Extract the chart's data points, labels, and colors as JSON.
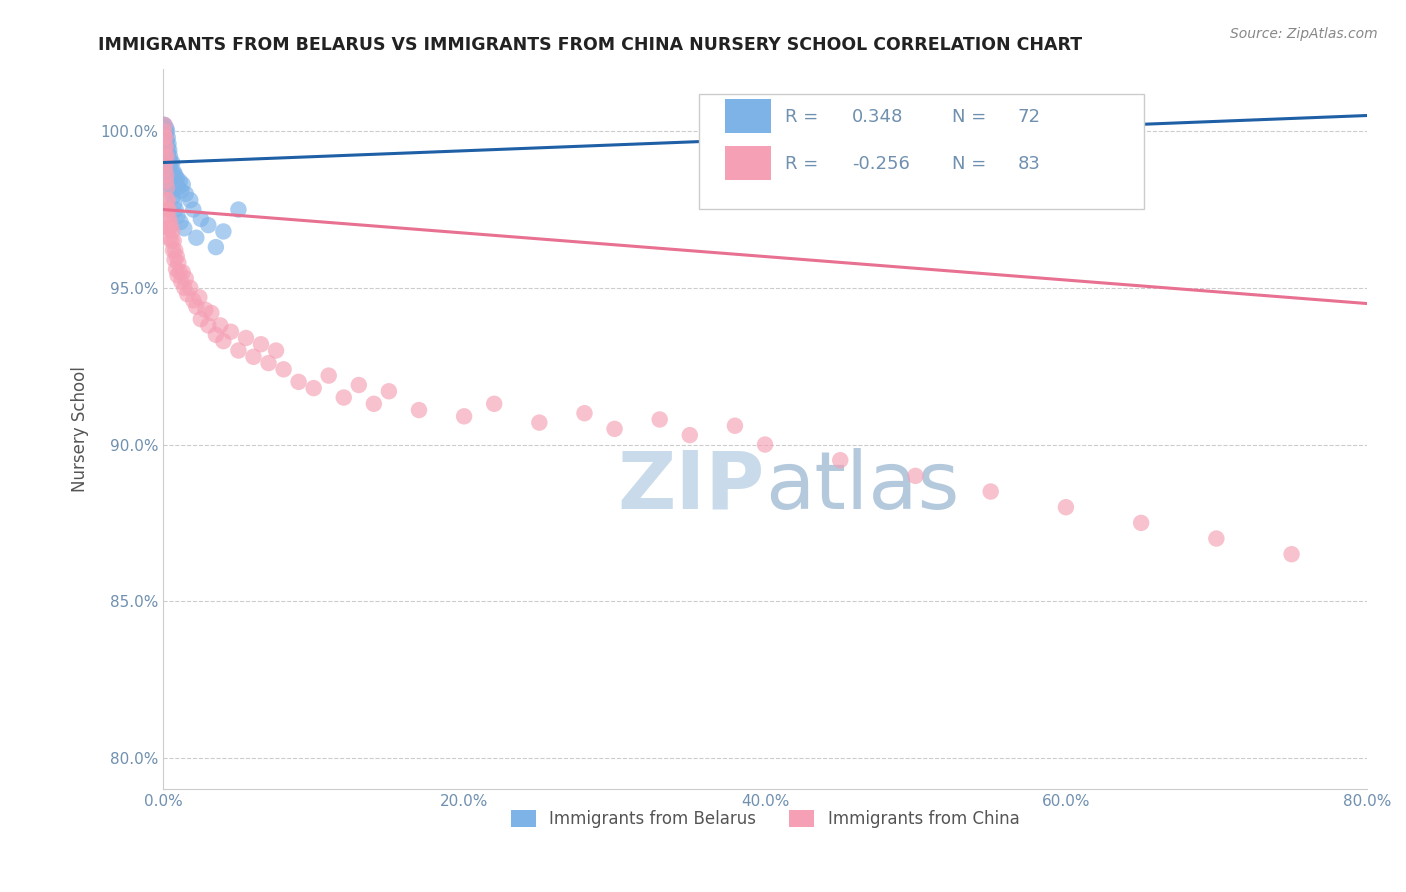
{
  "title": "IMMIGRANTS FROM BELARUS VS IMMIGRANTS FROM CHINA NURSERY SCHOOL CORRELATION CHART",
  "source": "Source: ZipAtlas.com",
  "ylabel": "Nursery School",
  "xlabel_ticks": [
    "0.0%",
    "20.0%",
    "40.0%",
    "60.0%",
    "80.0%"
  ],
  "xlabel_vals": [
    0.0,
    20.0,
    40.0,
    60.0,
    80.0
  ],
  "ylabel_ticks": [
    "80.0%",
    "85.0%",
    "90.0%",
    "95.0%",
    "100.0%"
  ],
  "ylabel_vals": [
    80.0,
    85.0,
    90.0,
    95.0,
    100.0
  ],
  "xlim": [
    0.0,
    80.0
  ],
  "ylim": [
    79.0,
    102.0
  ],
  "legend_bottom": [
    "Immigrants from Belarus",
    "Immigrants from China"
  ],
  "blue_color": "#7EB3E8",
  "pink_color": "#F5A0B5",
  "blue_line_color": "#1F5FA6",
  "pink_line_color": "#E87090",
  "axis_label_color": "#555555",
  "tick_color": "#7090B0",
  "grid_color": "#CCCCCC",
  "watermark_color": "#C8D8E8",
  "belarus_x": [
    0.05,
    0.05,
    0.07,
    0.08,
    0.1,
    0.1,
    0.12,
    0.15,
    0.15,
    0.18,
    0.2,
    0.2,
    0.22,
    0.25,
    0.25,
    0.28,
    0.3,
    0.3,
    0.32,
    0.35,
    0.35,
    0.38,
    0.4,
    0.4,
    0.42,
    0.45,
    0.5,
    0.5,
    0.55,
    0.6,
    0.6,
    0.65,
    0.7,
    0.75,
    0.8,
    0.85,
    0.9,
    1.0,
    1.1,
    1.2,
    1.3,
    1.5,
    1.8,
    2.0,
    2.5,
    3.0,
    4.0,
    5.0,
    0.06,
    0.09,
    0.13,
    0.17,
    0.21,
    0.26,
    0.33,
    0.43,
    0.53,
    0.63,
    0.73,
    0.83,
    0.95,
    1.15,
    1.4,
    2.2,
    3.5,
    0.05,
    0.06,
    0.08,
    0.11,
    0.14,
    0.19
  ],
  "belarus_y": [
    99.8,
    100.2,
    100.0,
    99.5,
    100.0,
    99.3,
    99.8,
    100.0,
    99.6,
    99.9,
    100.1,
    99.4,
    99.7,
    100.0,
    99.2,
    99.5,
    99.8,
    99.0,
    99.3,
    99.6,
    98.8,
    99.1,
    99.4,
    98.6,
    98.9,
    99.2,
    99.0,
    98.4,
    98.7,
    99.0,
    98.2,
    98.5,
    98.7,
    98.4,
    98.6,
    98.3,
    98.5,
    98.2,
    98.4,
    98.1,
    98.3,
    98.0,
    97.8,
    97.5,
    97.2,
    97.0,
    96.8,
    97.5,
    99.5,
    99.9,
    99.7,
    99.3,
    99.1,
    98.7,
    98.5,
    98.3,
    98.1,
    97.9,
    97.7,
    97.5,
    97.3,
    97.1,
    96.9,
    96.6,
    96.3,
    100.2,
    100.1,
    99.7,
    99.4,
    99.2,
    98.9
  ],
  "china_x": [
    0.05,
    0.07,
    0.1,
    0.12,
    0.15,
    0.18,
    0.2,
    0.22,
    0.25,
    0.28,
    0.3,
    0.32,
    0.35,
    0.38,
    0.4,
    0.42,
    0.45,
    0.5,
    0.55,
    0.6,
    0.65,
    0.7,
    0.75,
    0.8,
    0.85,
    0.9,
    0.95,
    1.0,
    1.1,
    1.2,
    1.3,
    1.4,
    1.5,
    1.6,
    1.8,
    2.0,
    2.2,
    2.4,
    2.5,
    2.8,
    3.0,
    3.2,
    3.5,
    3.8,
    4.0,
    4.5,
    5.0,
    5.5,
    6.0,
    6.5,
    7.0,
    7.5,
    8.0,
    9.0,
    10.0,
    11.0,
    12.0,
    13.0,
    14.0,
    15.0,
    17.0,
    20.0,
    22.0,
    25.0,
    28.0,
    30.0,
    33.0,
    35.0,
    38.0,
    40.0,
    45.0,
    50.0,
    55.0,
    60.0,
    65.0,
    70.0,
    75.0,
    0.06,
    0.09,
    0.13,
    0.17,
    0.23
  ],
  "china_y": [
    99.5,
    99.8,
    99.2,
    98.8,
    99.0,
    98.4,
    98.6,
    97.8,
    98.2,
    97.5,
    97.8,
    97.2,
    97.5,
    96.9,
    97.2,
    96.6,
    96.9,
    97.0,
    96.5,
    96.8,
    96.2,
    96.5,
    95.9,
    96.2,
    95.6,
    96.0,
    95.4,
    95.8,
    95.5,
    95.2,
    95.5,
    95.0,
    95.3,
    94.8,
    95.0,
    94.6,
    94.4,
    94.7,
    94.0,
    94.3,
    93.8,
    94.2,
    93.5,
    93.8,
    93.3,
    93.6,
    93.0,
    93.4,
    92.8,
    93.2,
    92.6,
    93.0,
    92.4,
    92.0,
    91.8,
    92.2,
    91.5,
    91.9,
    91.3,
    91.7,
    91.1,
    90.9,
    91.3,
    90.7,
    91.0,
    90.5,
    90.8,
    90.3,
    90.6,
    90.0,
    89.5,
    89.0,
    88.5,
    88.0,
    87.5,
    87.0,
    86.5,
    100.0,
    100.2,
    99.8,
    99.5,
    99.2
  ]
}
